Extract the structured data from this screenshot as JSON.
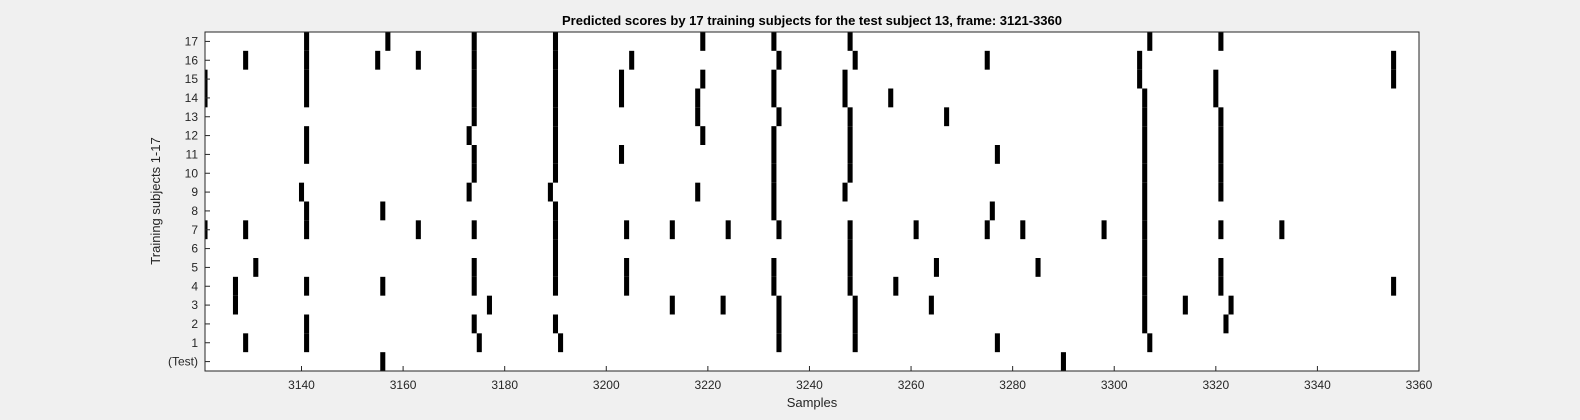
{
  "chart_data": {
    "type": "heatmap",
    "title": "Predicted scores by 17 training subjects for the test subject 13, frame: 3121-3360",
    "xlabel": "Samples",
    "ylabel": "Training subjects 1-17",
    "xlim": [
      3121,
      3360
    ],
    "x_ticks": [
      "3140",
      "3160",
      "3180",
      "3200",
      "3220",
      "3240",
      "3260",
      "3280",
      "3300",
      "3320",
      "3340",
      "3360"
    ],
    "rows": [
      "(Test)",
      "1",
      "2",
      "3",
      "4",
      "5",
      "6",
      "7",
      "8",
      "9",
      "10",
      "11",
      "12",
      "13",
      "14",
      "15",
      "16",
      "17"
    ],
    "grid": false,
    "colors": {
      "mark": "#000000",
      "background": "#ffffff",
      "figure": "#f0f0f0"
    },
    "marks": [
      {
        "row": "(Test)",
        "x": [
          3156,
          3290
        ]
      },
      {
        "row": "1",
        "x": [
          3129,
          3141,
          3175,
          3191,
          3234,
          3249,
          3277,
          3307
        ]
      },
      {
        "row": "2",
        "x": [
          3141,
          3174,
          3190,
          3234,
          3249,
          3306,
          3322
        ]
      },
      {
        "row": "3",
        "x": [
          3127,
          3177,
          3213,
          3223,
          3234,
          3249,
          3264,
          3306,
          3314,
          3323
        ]
      },
      {
        "row": "4",
        "x": [
          3127,
          3141,
          3156,
          3174,
          3190,
          3204,
          3233,
          3248,
          3257,
          3306,
          3321,
          3355
        ]
      },
      {
        "row": "5",
        "x": [
          3131,
          3174,
          3190,
          3204,
          3233,
          3248,
          3265,
          3285,
          3306,
          3321
        ]
      },
      {
        "row": "6",
        "x": [
          3190,
          3248,
          3306
        ]
      },
      {
        "row": "7",
        "x": [
          3121,
          3129,
          3141,
          3163,
          3174,
          3190,
          3204,
          3213,
          3224,
          3234,
          3248,
          3261,
          3275,
          3282,
          3298,
          3306,
          3321,
          3333
        ]
      },
      {
        "row": "8",
        "x": [
          3141,
          3156,
          3190,
          3233,
          3276,
          3306
        ]
      },
      {
        "row": "9",
        "x": [
          3140,
          3173,
          3189,
          3218,
          3233,
          3247,
          3306,
          3321
        ]
      },
      {
        "row": "10",
        "x": [
          3174,
          3190,
          3233,
          3248,
          3306,
          3321
        ]
      },
      {
        "row": "11",
        "x": [
          3141,
          3174,
          3190,
          3203,
          3233,
          3248,
          3277,
          3306,
          3321
        ]
      },
      {
        "row": "12",
        "x": [
          3141,
          3173,
          3190,
          3219,
          3233,
          3248,
          3306,
          3321
        ]
      },
      {
        "row": "13",
        "x": [
          3174,
          3190,
          3218,
          3234,
          3248,
          3267,
          3306,
          3321
        ]
      },
      {
        "row": "14",
        "x": [
          3121,
          3141,
          3174,
          3190,
          3203,
          3218,
          3233,
          3247,
          3256,
          3306,
          3320
        ]
      },
      {
        "row": "15",
        "x": [
          3121,
          3141,
          3174,
          3190,
          3203,
          3219,
          3233,
          3247,
          3305,
          3320,
          3355
        ]
      },
      {
        "row": "16",
        "x": [
          3129,
          3141,
          3155,
          3163,
          3174,
          3190,
          3205,
          3234,
          3249,
          3275,
          3305,
          3355
        ]
      },
      {
        "row": "17",
        "x": [
          3141,
          3157,
          3174,
          3190,
          3219,
          3233,
          3248,
          3307,
          3321
        ]
      }
    ]
  }
}
